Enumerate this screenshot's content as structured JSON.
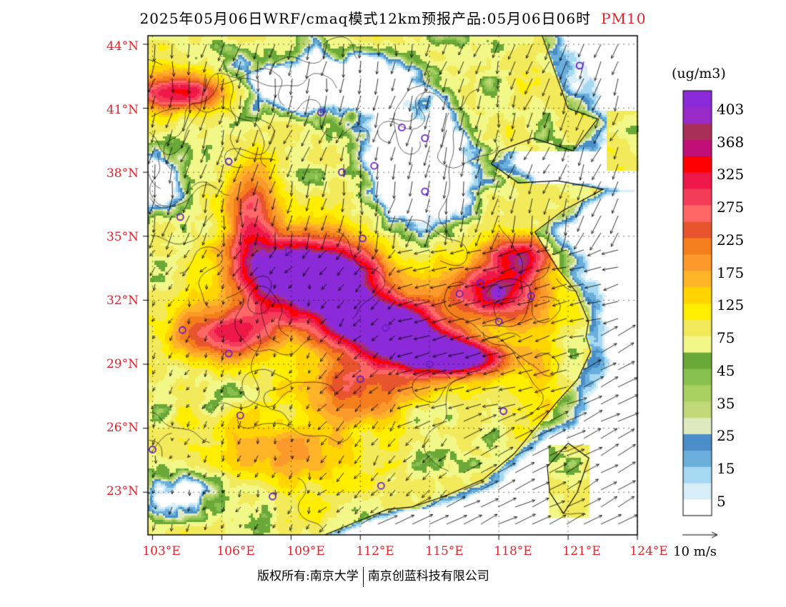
{
  "title": {
    "main": "2025年05月06日WRF/cmaq模式12km预报产品:05月06日06时",
    "species": "PM10"
  },
  "axes": {
    "lat_labels": [
      "44°N",
      "41°N",
      "38°N",
      "35°N",
      "32°N",
      "29°N",
      "26°N",
      "23°N"
    ],
    "lat_values": [
      44,
      41,
      38,
      35,
      32,
      29,
      26,
      23
    ],
    "lon_labels": [
      "103°E",
      "106°E",
      "109°E",
      "112°E",
      "115°E",
      "118°E",
      "121°E",
      "124°E"
    ],
    "lon_values": [
      103,
      106,
      109,
      112,
      115,
      118,
      121,
      124
    ],
    "extent": {
      "lon_min": 102.8,
      "lon_max": 124.0,
      "lat_min": 21.0,
      "lat_max": 44.4
    }
  },
  "colorbar": {
    "unit": "(ug/m3)",
    "colors": [
      "#ffffff",
      "#d8eef8",
      "#a6d8f2",
      "#6aaedc",
      "#4a8ec8",
      "#dfeac0",
      "#c0d878",
      "#a8d060",
      "#88c050",
      "#6aa838",
      "#f2f888",
      "#f2ea5a",
      "#ffee00",
      "#ffd400",
      "#ffb428",
      "#fb9a2a",
      "#f57e1c",
      "#e8542e",
      "#ff6666",
      "#f43c58",
      "#ee1848",
      "#ff0000",
      "#c01078",
      "#a83058",
      "#9a2ac8",
      "#8a2ad8"
    ],
    "labels": [
      "403",
      "368",
      "325",
      "275",
      "225",
      "175",
      "125",
      "75",
      "45",
      "35",
      "25",
      "15",
      "5"
    ]
  },
  "vector_label": "10 m/s",
  "cities": [
    [
      121.5,
      43.0
    ],
    [
      110.3,
      40.8
    ],
    [
      113.8,
      40.1
    ],
    [
      114.8,
      39.6
    ],
    [
      112.6,
      38.3
    ],
    [
      111.2,
      38.0
    ],
    [
      106.3,
      38.5
    ],
    [
      104.2,
      35.9
    ],
    [
      112.1,
      34.9
    ],
    [
      114.8,
      37.1
    ],
    [
      108.9,
      34.3
    ],
    [
      116.3,
      32.3
    ],
    [
      117.2,
      32.8
    ],
    [
      119.4,
      32.2
    ],
    [
      113.1,
      30.7
    ],
    [
      104.3,
      30.6
    ],
    [
      106.3,
      29.5
    ],
    [
      118.0,
      31.0
    ],
    [
      115.0,
      29.0
    ],
    [
      112.0,
      28.3
    ],
    [
      118.2,
      26.8
    ],
    [
      106.8,
      26.6
    ],
    [
      103.0,
      25.0
    ],
    [
      108.2,
      22.8
    ],
    [
      112.9,
      23.3
    ]
  ],
  "footer": {
    "copyright": "版权所有:南京大学",
    "company": "南京创蓝科技有限公司"
  }
}
